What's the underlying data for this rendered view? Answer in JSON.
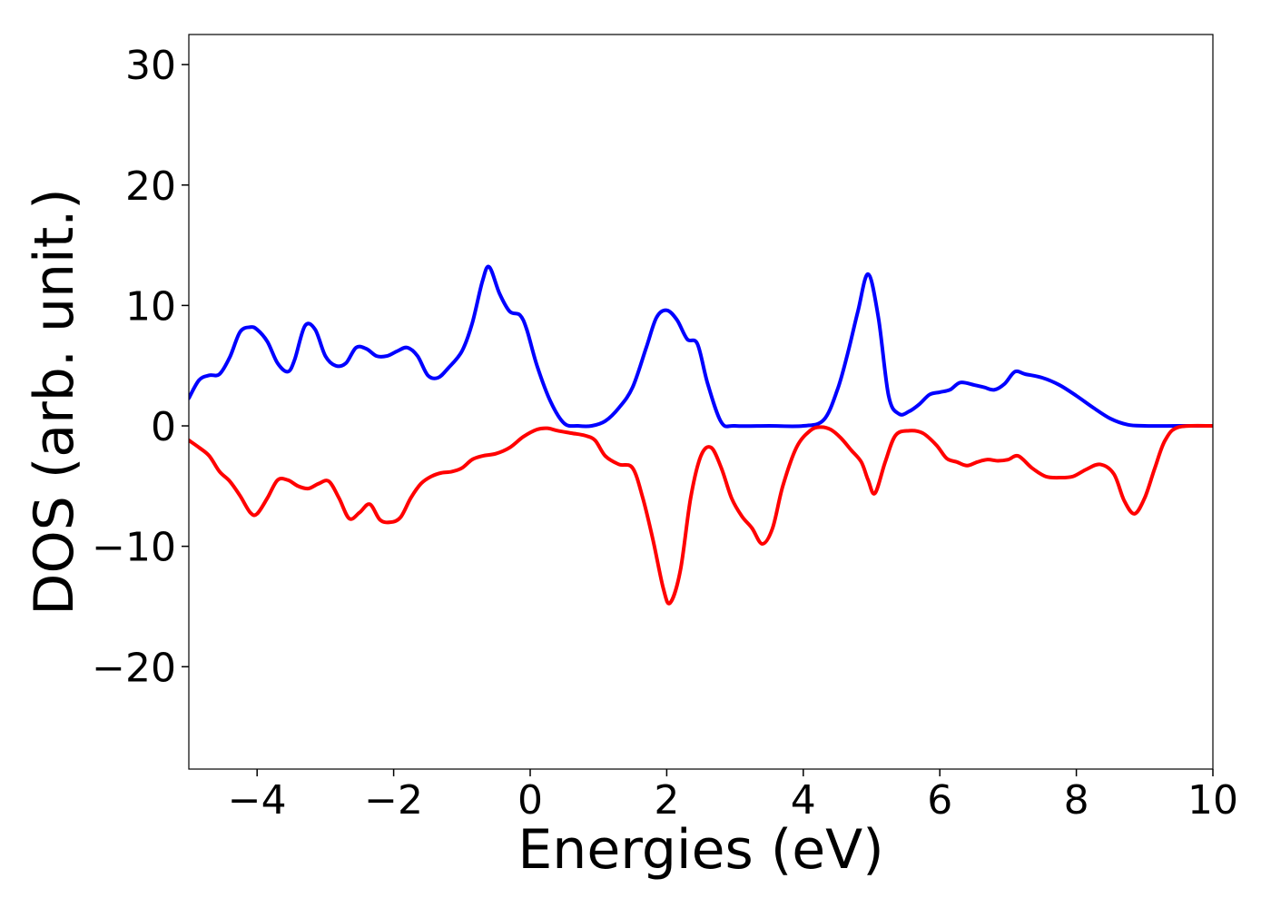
{
  "chart_data": {
    "type": "line",
    "title": "",
    "xlabel": "Energies (eV)",
    "ylabel": "DOS (arb. unit.)",
    "xlim": [
      -5,
      10
    ],
    "ylim": [
      -28.5,
      32.5
    ],
    "grid": false,
    "legend": "none",
    "xticks": [
      -4,
      -2,
      0,
      2,
      4,
      6,
      8,
      10
    ],
    "xtick_labels": [
      "−4",
      "−2",
      "0",
      "2",
      "4",
      "6",
      "8",
      "10"
    ],
    "yticks": [
      -20,
      -10,
      0,
      10,
      20,
      30
    ],
    "ytick_labels": [
      "−20",
      "−10",
      "0",
      "10",
      "20",
      "30"
    ],
    "series": [
      {
        "color": "#0000ff",
        "x": [
          -5,
          -4.85,
          -4.7,
          -4.55,
          -4.4,
          -4.25,
          -4.1,
          -4.0,
          -3.85,
          -3.7,
          -3.55,
          -3.45,
          -3.3,
          -3.15,
          -3.0,
          -2.85,
          -2.7,
          -2.55,
          -2.4,
          -2.25,
          -2.1,
          -1.95,
          -1.8,
          -1.65,
          -1.5,
          -1.35,
          -1.2,
          -1.0,
          -0.85,
          -0.7,
          -0.6,
          -0.45,
          -0.3,
          -0.15,
          -0.05,
          0.1,
          0.3,
          0.5,
          0.7,
          0.9,
          1.1,
          1.3,
          1.5,
          1.7,
          1.85,
          2.0,
          2.15,
          2.3,
          2.45,
          2.6,
          2.8,
          3.0,
          3.5,
          4.0,
          4.3,
          4.5,
          4.65,
          4.8,
          4.95,
          5.1,
          5.25,
          5.4,
          5.55,
          5.7,
          5.85,
          6.0,
          6.15,
          6.3,
          6.5,
          6.65,
          6.8,
          6.95,
          7.1,
          7.25,
          7.5,
          7.75,
          8.0,
          8.25,
          8.5,
          8.75,
          9.0,
          9.5,
          10.0
        ],
        "y": [
          2.3,
          3.8,
          4.2,
          4.3,
          5.7,
          7.8,
          8.2,
          8.0,
          7.0,
          5.2,
          4.5,
          5.5,
          8.3,
          8.0,
          5.8,
          5.0,
          5.2,
          6.5,
          6.4,
          5.8,
          5.8,
          6.2,
          6.5,
          5.8,
          4.2,
          4.0,
          4.8,
          6.2,
          8.5,
          12.0,
          13.2,
          11.0,
          9.5,
          9.2,
          8.0,
          5.0,
          2.0,
          0.2,
          0.0,
          0.0,
          0.4,
          1.5,
          3.2,
          6.5,
          9.0,
          9.6,
          8.8,
          7.2,
          6.8,
          3.5,
          0.3,
          0.0,
          0.0,
          0.0,
          0.5,
          3.0,
          6.0,
          9.5,
          12.6,
          9.0,
          2.5,
          1.0,
          1.2,
          1.8,
          2.6,
          2.8,
          3.0,
          3.6,
          3.4,
          3.2,
          3.0,
          3.5,
          4.5,
          4.3,
          4.0,
          3.4,
          2.5,
          1.5,
          0.6,
          0.1,
          0.0,
          0.0,
          0.0
        ]
      },
      {
        "color": "#ff0000",
        "x": [
          -5,
          -4.85,
          -4.7,
          -4.55,
          -4.4,
          -4.25,
          -4.1,
          -4.0,
          -3.85,
          -3.7,
          -3.55,
          -3.4,
          -3.25,
          -3.1,
          -2.95,
          -2.8,
          -2.65,
          -2.5,
          -2.35,
          -2.2,
          -2.05,
          -1.9,
          -1.75,
          -1.6,
          -1.45,
          -1.3,
          -1.15,
          -1.0,
          -0.85,
          -0.7,
          -0.5,
          -0.3,
          -0.1,
          0.1,
          0.25,
          0.4,
          0.6,
          0.8,
          0.95,
          1.1,
          1.3,
          1.5,
          1.65,
          1.8,
          1.95,
          2.05,
          2.2,
          2.35,
          2.5,
          2.65,
          2.8,
          2.95,
          3.1,
          3.25,
          3.4,
          3.55,
          3.7,
          3.9,
          4.1,
          4.25,
          4.4,
          4.55,
          4.7,
          4.85,
          4.95,
          5.05,
          5.2,
          5.35,
          5.55,
          5.75,
          5.95,
          6.1,
          6.25,
          6.4,
          6.55,
          6.7,
          6.85,
          7.0,
          7.15,
          7.35,
          7.55,
          7.75,
          7.95,
          8.15,
          8.35,
          8.55,
          8.7,
          8.85,
          9.0,
          9.15,
          9.3,
          9.5,
          10.0
        ],
        "y": [
          -1.2,
          -1.8,
          -2.5,
          -3.8,
          -4.6,
          -5.8,
          -7.2,
          -7.3,
          -6.0,
          -4.5,
          -4.5,
          -5.0,
          -5.2,
          -4.8,
          -4.6,
          -6.0,
          -7.7,
          -7.2,
          -6.5,
          -7.8,
          -8.0,
          -7.6,
          -6.0,
          -4.8,
          -4.2,
          -3.9,
          -3.8,
          -3.5,
          -2.8,
          -2.5,
          -2.3,
          -1.8,
          -0.9,
          -0.3,
          -0.2,
          -0.4,
          -0.6,
          -0.8,
          -1.2,
          -2.5,
          -3.2,
          -3.5,
          -6.0,
          -9.5,
          -13.5,
          -14.7,
          -12.0,
          -6.0,
          -2.5,
          -1.8,
          -3.5,
          -6.0,
          -7.5,
          -8.5,
          -9.8,
          -8.5,
          -5.0,
          -1.8,
          -0.4,
          -0.1,
          -0.3,
          -1.0,
          -2.0,
          -3.0,
          -4.5,
          -5.6,
          -3.0,
          -0.8,
          -0.4,
          -0.6,
          -1.6,
          -2.7,
          -3.0,
          -3.3,
          -3.0,
          -2.8,
          -2.9,
          -2.8,
          -2.5,
          -3.5,
          -4.2,
          -4.3,
          -4.2,
          -3.6,
          -3.2,
          -4.0,
          -6.2,
          -7.3,
          -6.0,
          -3.5,
          -1.2,
          -0.1,
          0.0
        ]
      }
    ]
  }
}
